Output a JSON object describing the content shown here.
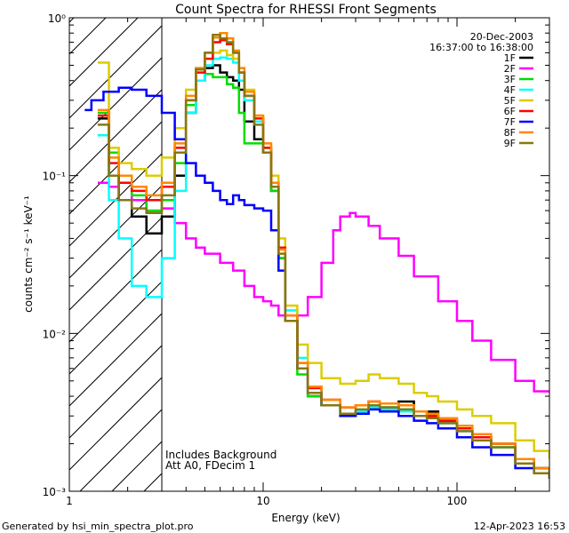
{
  "chart_data": {
    "type": "line",
    "title": "Count Spectra for RHESSI Front Segments",
    "xlabel": "Energy (keV)",
    "ylabel": "counts cm⁻² s⁻¹ keV⁻¹",
    "xscale": "log",
    "yscale": "log",
    "xlim": [
      1,
      300
    ],
    "ylim": [
      0.001,
      1
    ],
    "x_ticks": [
      {
        "value": 1,
        "label": "1"
      },
      {
        "value": 10,
        "label": "10"
      },
      {
        "value": 100,
        "label": "100"
      }
    ],
    "y_ticks": [
      {
        "value": 1,
        "label": "10⁰"
      },
      {
        "value": 0.1,
        "label": "10⁻¹"
      },
      {
        "value": 0.01,
        "label": "10⁻²"
      },
      {
        "value": 0.001,
        "label": "10⁻³"
      }
    ],
    "hatched_region": {
      "x_from": 1,
      "x_to": 3
    },
    "info": {
      "date": "20-Dec-2003",
      "time_range": "16:37:00 to 16:38:00"
    },
    "notes": [
      "Includes Background",
      "Att A0, FDecim 1"
    ],
    "footer_left": "Generated by hsi_min_spectra_plot.pro",
    "footer_right": "12-Apr-2023 16:53",
    "series": [
      {
        "name": "1F",
        "color": "#000000",
        "x": [
          1.4,
          1.6,
          1.8,
          2.1,
          2.5,
          3,
          3.5,
          4,
          4.5,
          5,
          5.5,
          6,
          6.5,
          7,
          7.5,
          8,
          9,
          10,
          11,
          12,
          13,
          15,
          17,
          20,
          25,
          30,
          35,
          40,
          50,
          60,
          70,
          80,
          100,
          120,
          150,
          200,
          250,
          300
        ],
        "y": [
          0.23,
          0.1,
          0.07,
          0.055,
          0.043,
          0.055,
          0.1,
          0.25,
          0.4,
          0.48,
          0.5,
          0.45,
          0.42,
          0.4,
          0.35,
          0.22,
          0.17,
          0.14,
          0.08,
          0.03,
          0.012,
          0.006,
          0.004,
          0.0035,
          0.003,
          0.0032,
          0.0035,
          0.0034,
          0.0037,
          0.003,
          0.0032,
          0.0028,
          0.0025,
          0.0022,
          0.002,
          0.0016,
          0.0014,
          0.0013
        ]
      },
      {
        "name": "2F",
        "color": "#ff00ff",
        "x": [
          1.4,
          1.6,
          1.8,
          2.1,
          2.5,
          3,
          3.5,
          4,
          4.5,
          5,
          6,
          7,
          8,
          9,
          10,
          11,
          12,
          13,
          15,
          17,
          20,
          23,
          25,
          28,
          30,
          35,
          40,
          50,
          60,
          80,
          100,
          120,
          150,
          200,
          250,
          300
        ],
        "y": [
          0.09,
          0.085,
          0.09,
          0.07,
          0.06,
          0.062,
          0.05,
          0.04,
          0.035,
          0.032,
          0.028,
          0.025,
          0.02,
          0.017,
          0.016,
          0.015,
          0.013,
          0.012,
          0.013,
          0.017,
          0.028,
          0.045,
          0.055,
          0.058,
          0.055,
          0.048,
          0.04,
          0.031,
          0.023,
          0.016,
          0.012,
          0.009,
          0.0068,
          0.005,
          0.0043,
          0.0042
        ]
      },
      {
        "name": "3F",
        "color": "#00dd00",
        "x": [
          1.4,
          1.6,
          1.8,
          2.1,
          2.5,
          3,
          3.5,
          4,
          4.5,
          5,
          5.5,
          6,
          6.5,
          7,
          7.5,
          8,
          9,
          10,
          11,
          12,
          13,
          15,
          17,
          20,
          25,
          30,
          35,
          40,
          50,
          60,
          70,
          80,
          100,
          120,
          150,
          200,
          250,
          300
        ],
        "y": [
          0.25,
          0.14,
          0.09,
          0.075,
          0.06,
          0.07,
          0.12,
          0.28,
          0.4,
          0.44,
          0.42,
          0.42,
          0.38,
          0.36,
          0.25,
          0.16,
          0.16,
          0.15,
          0.08,
          0.03,
          0.012,
          0.0055,
          0.004,
          0.0035,
          0.003,
          0.0031,
          0.0033,
          0.0034,
          0.0033,
          0.003,
          0.0029,
          0.0027,
          0.0025,
          0.0021,
          0.0019,
          0.0015,
          0.0014,
          0.0013
        ]
      },
      {
        "name": "4F",
        "color": "#00ffff",
        "x": [
          1.4,
          1.6,
          1.8,
          2.1,
          2.5,
          3,
          3.5,
          4,
          4.5,
          5,
          5.5,
          6,
          6.5,
          7,
          7.5,
          8,
          9,
          10,
          11,
          12,
          13,
          15,
          17,
          20,
          25,
          30,
          35,
          40,
          50,
          60,
          70,
          80,
          100,
          120,
          150,
          200,
          250,
          300
        ],
        "y": [
          0.18,
          0.07,
          0.04,
          0.02,
          0.017,
          0.03,
          0.08,
          0.25,
          0.4,
          0.5,
          0.55,
          0.56,
          0.55,
          0.52,
          0.4,
          0.3,
          0.22,
          0.14,
          0.09,
          0.035,
          0.014,
          0.007,
          0.0045,
          0.0035,
          0.0031,
          0.0032,
          0.0034,
          0.0033,
          0.0032,
          0.003,
          0.0029,
          0.0027,
          0.0024,
          0.0021,
          0.0019,
          0.0015,
          0.0013,
          0.0012
        ]
      },
      {
        "name": "5F",
        "color": "#ddcc00",
        "x": [
          1.4,
          1.6,
          1.8,
          2.1,
          2.5,
          3,
          3.5,
          4,
          4.5,
          5,
          5.5,
          6,
          6.5,
          7,
          7.5,
          8,
          9,
          10,
          11,
          12,
          13,
          15,
          17,
          20,
          25,
          30,
          35,
          40,
          50,
          60,
          70,
          80,
          100,
          120,
          150,
          200,
          250,
          300
        ],
        "y": [
          0.52,
          0.15,
          0.12,
          0.11,
          0.1,
          0.13,
          0.2,
          0.35,
          0.48,
          0.55,
          0.6,
          0.62,
          0.58,
          0.55,
          0.45,
          0.35,
          0.24,
          0.15,
          0.1,
          0.04,
          0.015,
          0.0085,
          0.0065,
          0.0052,
          0.0048,
          0.005,
          0.0055,
          0.0052,
          0.0048,
          0.0042,
          0.004,
          0.0037,
          0.0033,
          0.003,
          0.0027,
          0.0021,
          0.0018,
          0.0016
        ]
      },
      {
        "name": "6F",
        "color": "#ff0000",
        "x": [
          1.4,
          1.6,
          1.8,
          2.1,
          2.5,
          3,
          3.5,
          4,
          4.5,
          5,
          5.5,
          6,
          6.5,
          7,
          7.5,
          8,
          9,
          10,
          11,
          12,
          13,
          15,
          17,
          20,
          25,
          30,
          35,
          40,
          50,
          60,
          70,
          80,
          100,
          120,
          150,
          200,
          250,
          300
        ],
        "y": [
          0.24,
          0.12,
          0.09,
          0.08,
          0.07,
          0.085,
          0.15,
          0.3,
          0.45,
          0.55,
          0.7,
          0.72,
          0.68,
          0.6,
          0.45,
          0.32,
          0.23,
          0.15,
          0.09,
          0.035,
          0.013,
          0.0065,
          0.0045,
          0.0038,
          0.0034,
          0.0035,
          0.0037,
          0.0036,
          0.0035,
          0.0032,
          0.003,
          0.0028,
          0.0025,
          0.0022,
          0.002,
          0.0016,
          0.0014,
          0.0013
        ]
      },
      {
        "name": "7F",
        "color": "#0000ff",
        "x": [
          1.2,
          1.3,
          1.5,
          1.8,
          2.1,
          2.5,
          3,
          3.5,
          4,
          4.5,
          5,
          5.5,
          6,
          6.5,
          7,
          7.5,
          8,
          9,
          10,
          11,
          12,
          13,
          15,
          17,
          20,
          25,
          30,
          35,
          40,
          50,
          60,
          70,
          80,
          100,
          120,
          150,
          200,
          250,
          300
        ],
        "y": [
          0.26,
          0.3,
          0.34,
          0.36,
          0.35,
          0.32,
          0.25,
          0.17,
          0.12,
          0.1,
          0.09,
          0.08,
          0.07,
          0.066,
          0.075,
          0.07,
          0.065,
          0.062,
          0.06,
          0.045,
          0.025,
          0.012,
          0.006,
          0.0042,
          0.0035,
          0.003,
          0.0031,
          0.0033,
          0.0032,
          0.003,
          0.0028,
          0.0027,
          0.0025,
          0.0022,
          0.0019,
          0.0017,
          0.0014,
          0.0013,
          0.0012
        ]
      },
      {
        "name": "8F",
        "color": "#ff8800",
        "x": [
          1.4,
          1.6,
          1.8,
          2.1,
          2.5,
          3,
          3.5,
          4,
          4.5,
          5,
          5.5,
          6,
          6.5,
          7,
          7.5,
          8,
          9,
          10,
          11,
          12,
          13,
          15,
          17,
          20,
          25,
          30,
          35,
          40,
          50,
          60,
          70,
          80,
          100,
          120,
          150,
          200,
          250,
          300
        ],
        "y": [
          0.26,
          0.13,
          0.1,
          0.085,
          0.075,
          0.09,
          0.16,
          0.32,
          0.48,
          0.6,
          0.75,
          0.8,
          0.74,
          0.62,
          0.48,
          0.34,
          0.24,
          0.16,
          0.09,
          0.034,
          0.013,
          0.0065,
          0.0046,
          0.0038,
          0.0034,
          0.0035,
          0.0037,
          0.0036,
          0.0035,
          0.0032,
          0.0031,
          0.0029,
          0.0026,
          0.0023,
          0.002,
          0.0016,
          0.0014,
          0.0013
        ]
      },
      {
        "name": "9F",
        "color": "#887711",
        "x": [
          1.4,
          1.6,
          1.8,
          2.1,
          2.5,
          3,
          3.5,
          4,
          4.5,
          5,
          5.5,
          6,
          6.5,
          7,
          7.5,
          8,
          9,
          10,
          11,
          12,
          13,
          15,
          17,
          20,
          25,
          30,
          35,
          40,
          50,
          60,
          70,
          80,
          100,
          120,
          150,
          200,
          250,
          300
        ],
        "y": [
          0.21,
          0.1,
          0.07,
          0.062,
          0.058,
          0.075,
          0.14,
          0.3,
          0.47,
          0.6,
          0.78,
          0.74,
          0.7,
          0.6,
          0.45,
          0.32,
          0.21,
          0.14,
          0.085,
          0.032,
          0.012,
          0.006,
          0.0042,
          0.0035,
          0.0031,
          0.0033,
          0.0035,
          0.0034,
          0.0033,
          0.003,
          0.0029,
          0.0027,
          0.0024,
          0.0021,
          0.0019,
          0.0015,
          0.0013,
          0.0012
        ]
      }
    ]
  }
}
